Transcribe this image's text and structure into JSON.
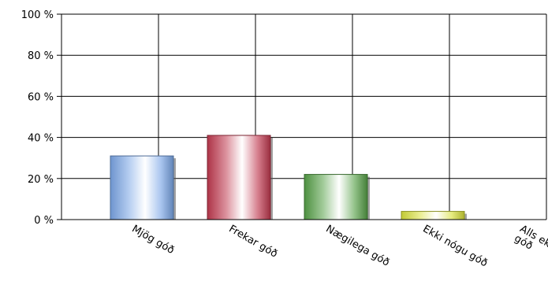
{
  "chart_data": {
    "type": "bar",
    "categories": [
      [
        "Mjög góð"
      ],
      [
        "Frekar góð"
      ],
      [
        "Nægilega góð"
      ],
      [
        "Ekki nógu góð"
      ],
      [
        "Alls ekki nógu",
        "góð"
      ]
    ],
    "values": [
      31,
      41,
      22,
      4,
      0
    ],
    "unit": "%",
    "ylim": [
      0,
      100
    ],
    "yticks": [
      {
        "value": 0,
        "label": "0 %"
      },
      {
        "value": 20,
        "label": "20 %"
      },
      {
        "value": 40,
        "label": "40 %"
      },
      {
        "value": 60,
        "label": "60 %"
      },
      {
        "value": 80,
        "label": "80 %"
      },
      {
        "value": 100,
        "label": "100 %"
      }
    ],
    "grid": true,
    "colors": [
      "#7aa6e6",
      "#c0394f",
      "#56a047",
      "#d8e03a",
      "#9a9a9a"
    ],
    "title": "",
    "xlabel": "",
    "ylabel": ""
  }
}
